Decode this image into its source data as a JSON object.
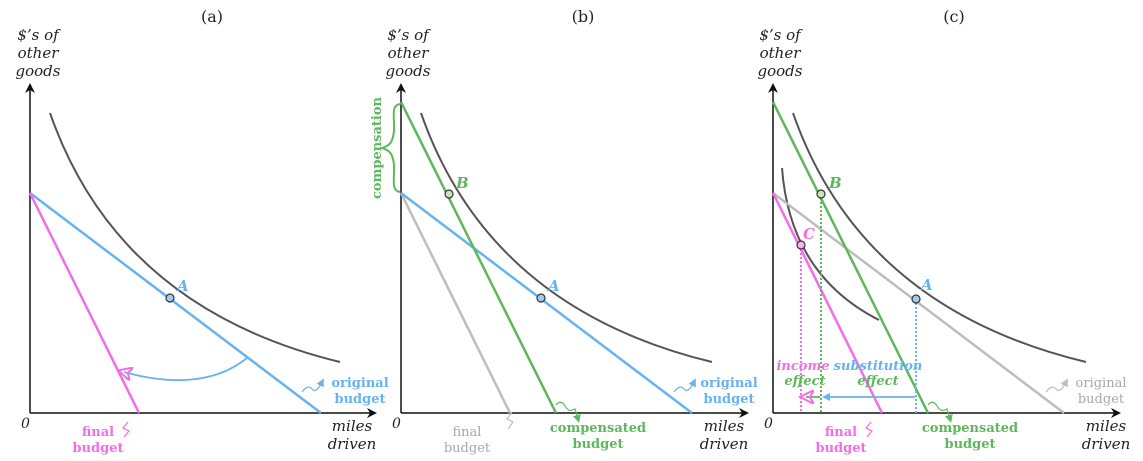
{
  "colors": {
    "axis": "#111111",
    "indifference": "#555555",
    "original": "#66b3f2",
    "final": "#f46ce8",
    "compensated": "#5cb85c",
    "final_gray": "#bdbdbd",
    "text_gray": "#a8a8a8"
  },
  "panels": [
    {
      "title": "(a)",
      "ylabel": [
        "$’s of",
        "other",
        "goods"
      ],
      "xlabel": [
        "miles",
        "driven"
      ],
      "origin": "0",
      "points": [
        {
          "label": "A"
        }
      ],
      "budgets": [
        {
          "label": [
            "original",
            "budget"
          ]
        },
        {
          "label": [
            "final",
            "budget"
          ]
        }
      ]
    },
    {
      "title": "(b)",
      "ylabel": [
        "$’s of",
        "other",
        "goods"
      ],
      "xlabel": [
        "miles",
        "driven"
      ],
      "origin": "0",
      "points": [
        {
          "label": "A"
        },
        {
          "label": "B"
        }
      ],
      "budgets": [
        {
          "label": [
            "original",
            "budget"
          ]
        },
        {
          "label": [
            "final",
            "budget"
          ]
        },
        {
          "label": [
            "compensated",
            "budget"
          ]
        }
      ],
      "compensation_label": "compensation"
    },
    {
      "title": "(c)",
      "ylabel": [
        "$’s of",
        "other",
        "goods"
      ],
      "xlabel": [
        "miles",
        "driven"
      ],
      "origin": "0",
      "points": [
        {
          "label": "A"
        },
        {
          "label": "B"
        },
        {
          "label": "C"
        }
      ],
      "budgets": [
        {
          "label": [
            "original",
            "budget"
          ]
        },
        {
          "label": [
            "final",
            "budget"
          ]
        },
        {
          "label": [
            "compensated",
            "budget"
          ]
        }
      ],
      "effects": {
        "income": [
          "income",
          "effect"
        ],
        "substitution": [
          "substitution",
          "effect"
        ]
      }
    }
  ]
}
